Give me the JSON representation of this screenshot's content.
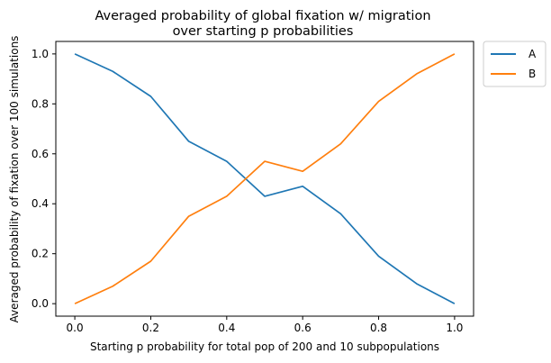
{
  "chart_data": {
    "type": "line",
    "title": "Averaged probability of global fixation w/ migration",
    "subtitle": "over starting p probabilities",
    "xlabel": "Starting p probability for total pop of 200 and 10 subpopulations",
    "ylabel": "Averaged probability of fixation over 100 simulations",
    "x": [
      0.0,
      0.1,
      0.2,
      0.3,
      0.4,
      0.5,
      0.6,
      0.7,
      0.8,
      0.9,
      1.0
    ],
    "xlim": [
      -0.05,
      1.05
    ],
    "ylim": [
      -0.05,
      1.05
    ],
    "xticks": [
      "0.0",
      "0.2",
      "0.4",
      "0.6",
      "0.8",
      "1.0"
    ],
    "yticks": [
      "0.0",
      "0.2",
      "0.4",
      "0.6",
      "0.8",
      "1.0"
    ],
    "grid": false,
    "legend_position": "outside-top-right",
    "series": [
      {
        "name": "A",
        "color": "#1f77b4",
        "values": [
          1.0,
          0.93,
          0.83,
          0.65,
          0.57,
          0.43,
          0.47,
          0.36,
          0.19,
          0.08,
          0.0
        ]
      },
      {
        "name": "B",
        "color": "#ff7f0e",
        "values": [
          0.0,
          0.07,
          0.17,
          0.35,
          0.43,
          0.57,
          0.53,
          0.64,
          0.81,
          0.92,
          1.0
        ]
      }
    ]
  }
}
